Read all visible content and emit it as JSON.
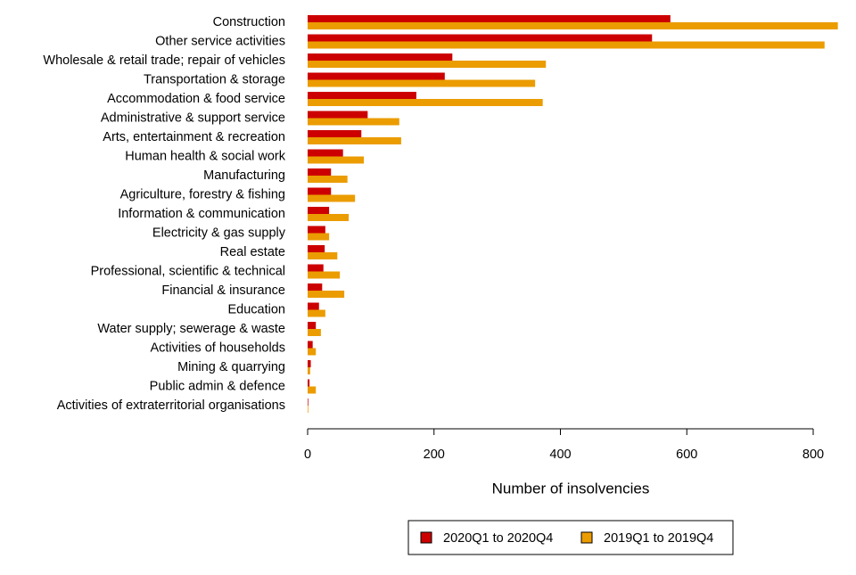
{
  "chart_data": {
    "type": "bar",
    "orientation": "horizontal",
    "x_label": "Number of insolvencies",
    "categories": [
      "Construction",
      "Other service activities",
      "Wholesale & retail trade; repair of vehicles",
      "Transportation & storage",
      "Accommodation & food service",
      "Administrative & support service",
      "Arts, entertainment & recreation",
      "Human health & social work",
      "Manufacturing",
      "Agriculture, forestry & fishing",
      "Information & communication",
      "Electricity & gas supply",
      "Real estate",
      "Professional, scientific & technical",
      "Financial & insurance",
      "Education",
      "Water supply; sewerage & waste",
      "Activities of households",
      "Mining & quarrying",
      "Public admin & defence",
      "Activities of extraterritorial organisations"
    ],
    "series": [
      {
        "name": "2020Q1 to 2020Q4",
        "color": "#cc0000",
        "values": [
          574,
          545,
          229,
          217,
          172,
          95,
          85,
          56,
          37,
          37,
          34,
          28,
          27,
          25,
          23,
          18,
          13,
          8,
          5,
          3,
          1
        ]
      },
      {
        "name": "2019Q1 to 2019Q4",
        "color": "#eb9c00",
        "values": [
          839,
          818,
          377,
          360,
          372,
          145,
          148,
          89,
          63,
          75,
          65,
          34,
          47,
          51,
          58,
          28,
          21,
          13,
          4,
          13,
          1
        ]
      }
    ],
    "xlim": [
      0,
      800
    ],
    "xticks": [
      0,
      200,
      400,
      600,
      800
    ],
    "grid": false,
    "legend": "bottom"
  }
}
